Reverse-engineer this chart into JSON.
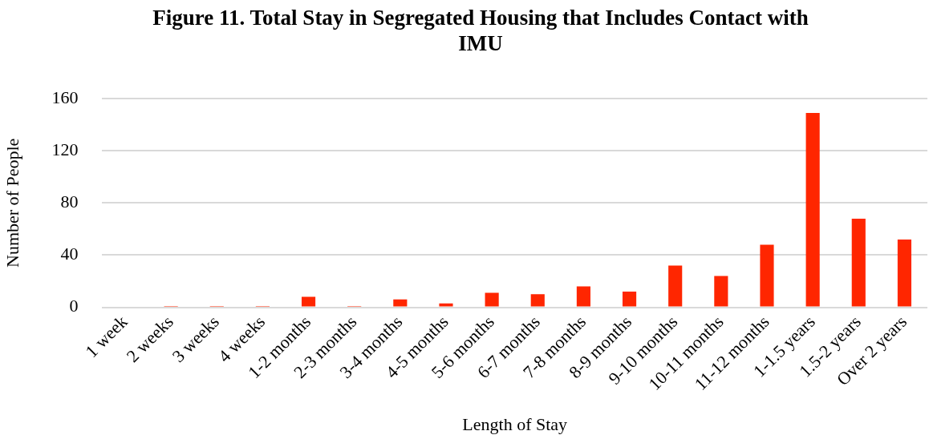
{
  "chart_data": {
    "type": "bar",
    "title": "Figure 11. Total Stay in Segregated Housing that Includes Contact with IMU",
    "xlabel": "Length of Stay",
    "ylabel": "Number of People",
    "categories": [
      "1 week",
      "2 weeks",
      "3 weeks",
      "4 weeks",
      "1-2 months",
      "2-3 months",
      "3-4 months",
      "4-5 months",
      "5-6 months",
      "6-7 months",
      "7-8 months",
      "8-9 months",
      "9-10 months",
      "10-11 months",
      "11-12 months",
      "1-1.5 years",
      "1.5-2 years",
      "Over 2 years"
    ],
    "values": [
      0,
      1,
      1,
      1,
      8,
      1,
      6,
      3,
      11,
      10,
      16,
      12,
      32,
      24,
      48,
      149,
      68,
      52
    ],
    "color": "#ff2600",
    "ylim": [
      0,
      160
    ],
    "yticks": [
      0,
      40,
      80,
      120,
      160
    ],
    "grid": "y",
    "legend": false
  }
}
